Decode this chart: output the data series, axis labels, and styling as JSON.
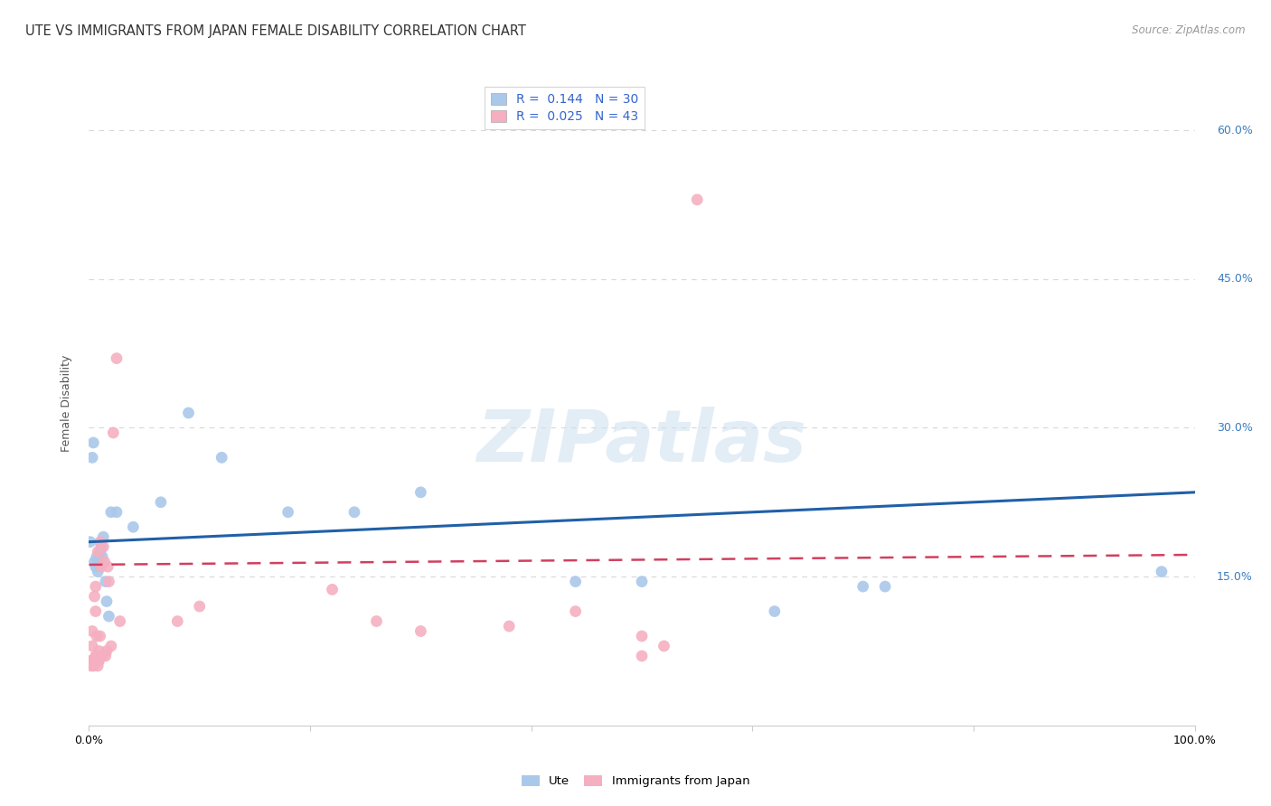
{
  "title": "UTE VS IMMIGRANTS FROM JAPAN FEMALE DISABILITY CORRELATION CHART",
  "source": "Source: ZipAtlas.com",
  "ylabel": "Female Disability",
  "watermark": "ZIPatlas",
  "xlim": [
    0,
    1.0
  ],
  "ylim": [
    0,
    0.65
  ],
  "ytick_right_labels": [
    "60.0%",
    "45.0%",
    "30.0%",
    "15.0%"
  ],
  "ytick_right_vals": [
    0.6,
    0.45,
    0.3,
    0.15
  ],
  "ute_color": "#aac8ea",
  "japan_color": "#f5afc0",
  "ute_line_color": "#2060a8",
  "japan_line_color": "#d04060",
  "background_color": "#ffffff",
  "grid_color": "#d8d8d8",
  "ute_scatter_x": [
    0.001,
    0.003,
    0.004,
    0.005,
    0.006,
    0.007,
    0.008,
    0.009,
    0.01,
    0.011,
    0.012,
    0.013,
    0.015,
    0.016,
    0.018,
    0.02,
    0.025,
    0.04,
    0.065,
    0.09,
    0.12,
    0.18,
    0.24,
    0.3,
    0.44,
    0.5,
    0.62,
    0.7,
    0.72,
    0.97
  ],
  "ute_scatter_y": [
    0.185,
    0.27,
    0.285,
    0.165,
    0.16,
    0.17,
    0.155,
    0.165,
    0.175,
    0.18,
    0.17,
    0.19,
    0.145,
    0.125,
    0.11,
    0.215,
    0.215,
    0.2,
    0.225,
    0.315,
    0.27,
    0.215,
    0.215,
    0.235,
    0.145,
    0.145,
    0.115,
    0.14,
    0.14,
    0.155
  ],
  "japan_scatter_x": [
    0.001,
    0.002,
    0.003,
    0.003,
    0.004,
    0.005,
    0.006,
    0.006,
    0.007,
    0.007,
    0.008,
    0.008,
    0.009,
    0.009,
    0.01,
    0.01,
    0.011,
    0.012,
    0.013,
    0.014,
    0.015,
    0.016,
    0.017,
    0.018,
    0.02,
    0.022,
    0.025,
    0.028,
    0.08,
    0.1,
    0.22,
    0.26,
    0.3,
    0.38,
    0.44,
    0.5,
    0.52,
    0.55,
    0.5,
    0.005,
    0.004,
    0.006,
    0.008
  ],
  "japan_scatter_y": [
    0.065,
    0.06,
    0.08,
    0.095,
    0.065,
    0.065,
    0.07,
    0.115,
    0.07,
    0.09,
    0.065,
    0.175,
    0.065,
    0.075,
    0.09,
    0.185,
    0.16,
    0.07,
    0.18,
    0.165,
    0.07,
    0.075,
    0.16,
    0.145,
    0.08,
    0.295,
    0.37,
    0.105,
    0.105,
    0.12,
    0.137,
    0.105,
    0.095,
    0.1,
    0.115,
    0.09,
    0.08,
    0.53,
    0.07,
    0.13,
    0.06,
    0.14,
    0.06
  ],
  "ute_R": 0.144,
  "ute_N": 30,
  "japan_R": 0.025,
  "japan_N": 43,
  "title_fontsize": 10.5,
  "axis_label_fontsize": 9,
  "tick_fontsize": 9,
  "legend_fontsize": 10,
  "source_fontsize": 8.5,
  "marker_size": 85
}
